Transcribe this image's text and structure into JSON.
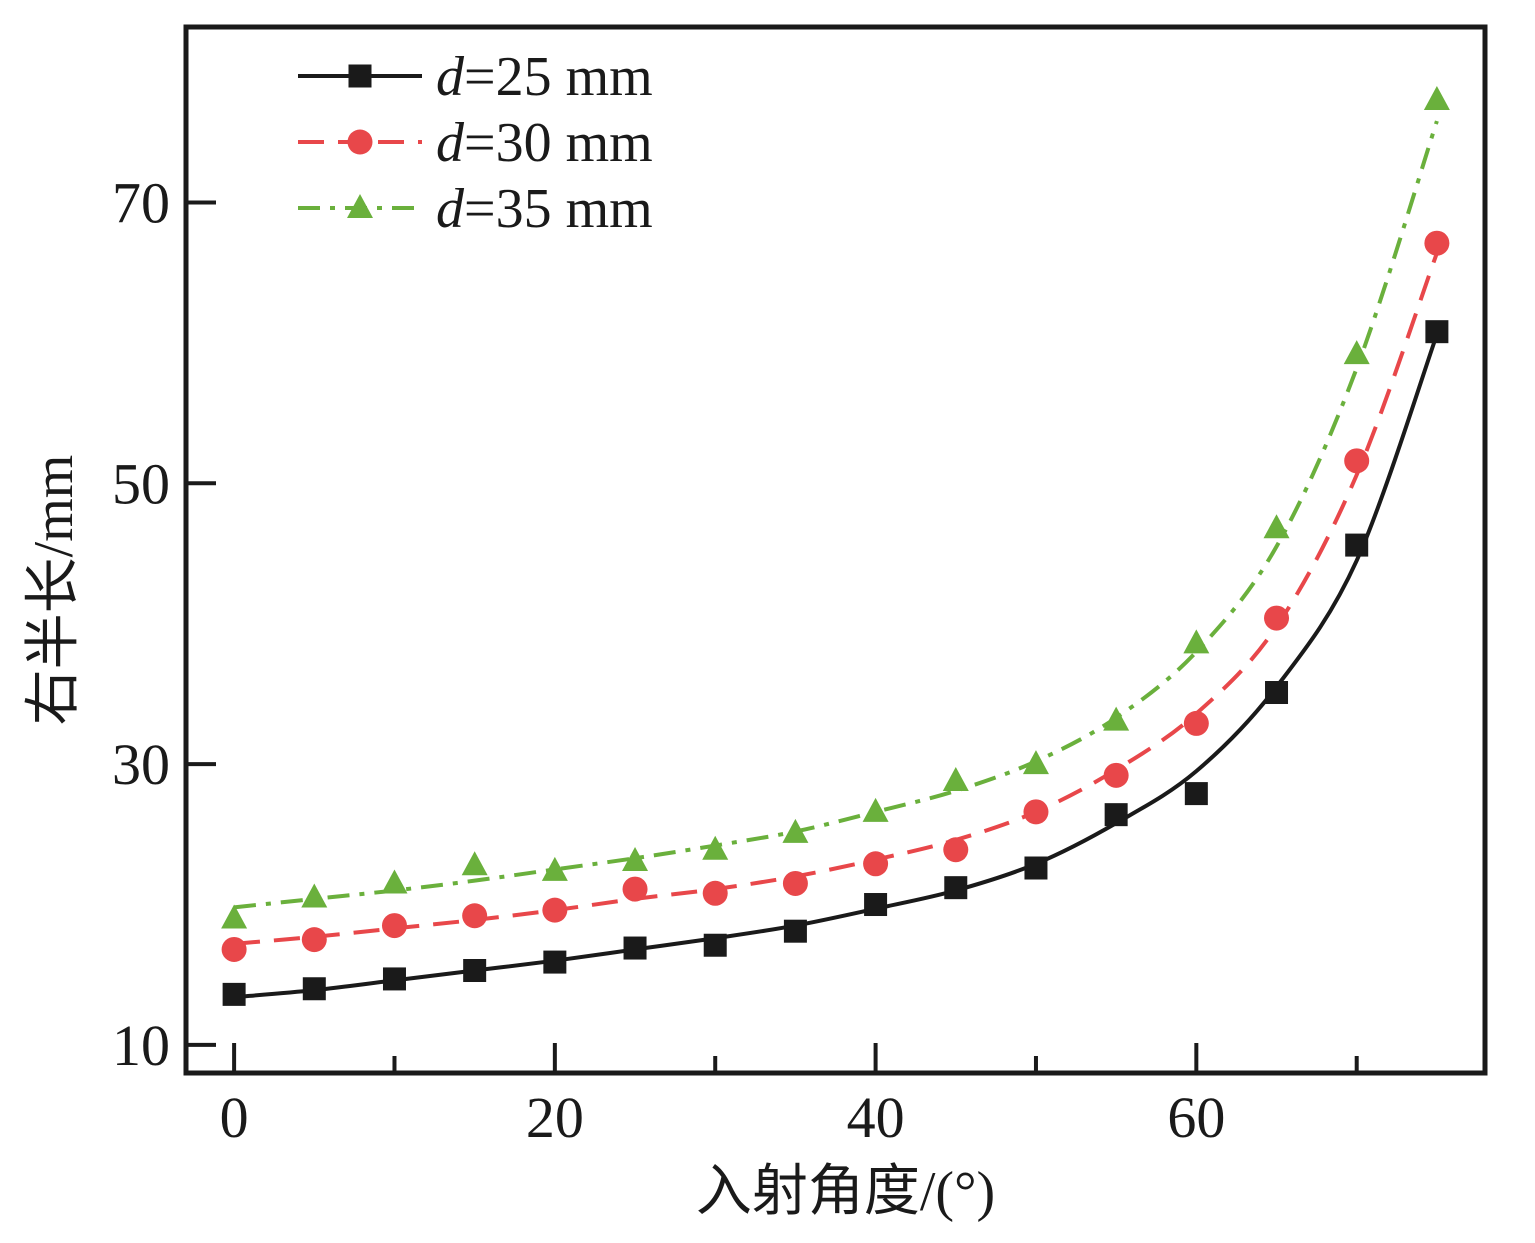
{
  "chart_data": {
    "type": "line",
    "title": "",
    "xlabel": "入射角度/(°)",
    "ylabel": "右半长/mm",
    "xlim": [
      -3,
      78
    ],
    "ylim": [
      8,
      82.5
    ],
    "x_ticks": [
      0,
      20,
      40,
      60
    ],
    "x_tick_labels": [
      "0",
      "20",
      "40",
      "60"
    ],
    "x_minor_ticks": [
      10,
      30,
      50,
      70
    ],
    "y_ticks": [
      10,
      30,
      50,
      70
    ],
    "y_tick_labels": [
      "10",
      "30",
      "50",
      "70"
    ],
    "legend_position": "top-left",
    "x": [
      0,
      5,
      10,
      15,
      20,
      25,
      30,
      35,
      40,
      45,
      50,
      55,
      60,
      65,
      70,
      75
    ],
    "series": [
      {
        "name": "d=25 mm",
        "legend_italic": "d",
        "legend_rest": "=25 mm",
        "color": "#1a1a1a",
        "marker": "square",
        "line_style": "solid",
        "values": [
          13.6,
          14.0,
          14.7,
          15.3,
          15.9,
          16.9,
          17.1,
          18.1,
          20.0,
          21.2,
          22.6,
          26.4,
          27.9,
          35.1,
          45.6,
          60.8
        ],
        "fit": [
          13.4,
          13.9,
          14.6,
          15.3,
          16.0,
          16.8,
          17.6,
          18.5,
          19.7,
          21.0,
          22.9,
          25.8,
          29.5,
          35.5,
          44.5,
          60.6
        ]
      },
      {
        "name": "d=30 mm",
        "legend_italic": "d",
        "legend_rest": "=30 mm",
        "color": "#e8474a",
        "marker": "circle",
        "line_style": "dashed",
        "values": [
          16.8,
          17.5,
          18.5,
          19.2,
          19.6,
          21.1,
          20.8,
          21.5,
          22.9,
          23.9,
          26.6,
          29.2,
          32.9,
          40.4,
          51.6,
          67.1
        ],
        "fit": [
          17.2,
          17.7,
          18.3,
          18.9,
          19.6,
          20.4,
          21.1,
          22.0,
          23.2,
          24.6,
          26.6,
          29.6,
          33.6,
          39.8,
          50.6,
          66.4
        ]
      },
      {
        "name": "d=35 mm",
        "legend_italic": "d",
        "legend_rest": "=35 mm",
        "color": "#6ab03c",
        "marker": "triangle",
        "line_style": "dashdot",
        "values": [
          19.0,
          20.5,
          21.5,
          22.8,
          22.4,
          23.1,
          23.9,
          25.1,
          26.6,
          28.8,
          30.0,
          33.1,
          38.6,
          46.8,
          59.2,
          77.3
        ],
        "fit": [
          19.8,
          20.4,
          21.0,
          21.7,
          22.5,
          23.3,
          24.2,
          25.2,
          26.6,
          28.1,
          30.2,
          33.3,
          38.0,
          45.5,
          58.2,
          75.8
        ]
      }
    ]
  }
}
